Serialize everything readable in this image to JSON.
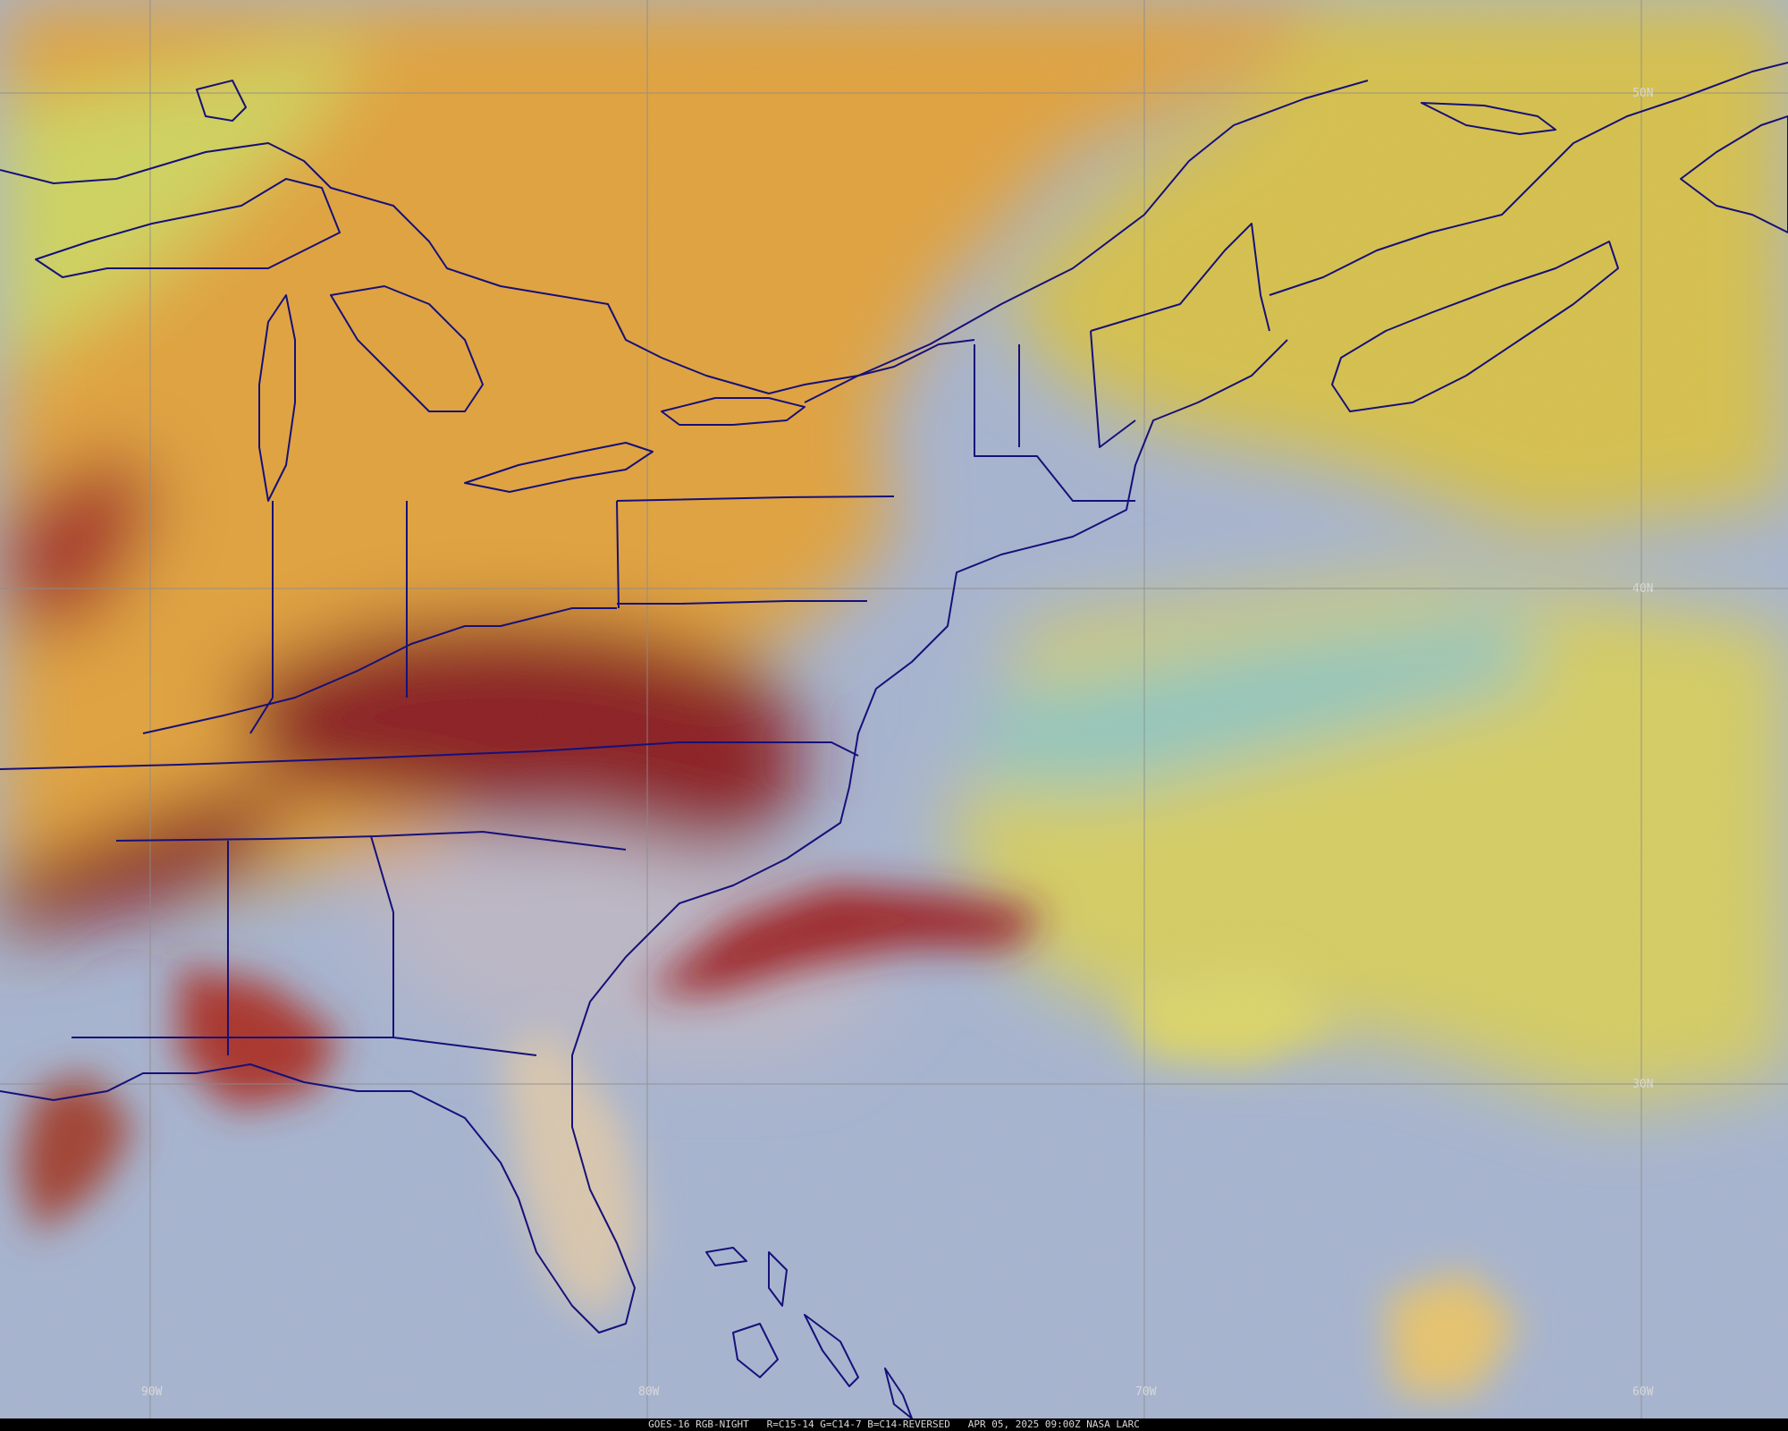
{
  "caption": "GOES-16 RGB-NIGHT   R=C15-14 G=C14-7 B=C14-REVERSED   APR 05, 2025 09:00Z NASA LARC",
  "colors": {
    "ocean": "#a6b4d2",
    "warm_land": "#e1a23e",
    "high_cloud": "#d8c84e",
    "storm": "#8a1a22",
    "clear_sky": "#8ec6c2",
    "border": "#16107a"
  },
  "graticule": {
    "longitude_labels": [
      "90W",
      "80W",
      "70W",
      "60W"
    ],
    "latitude_labels": [
      "50N",
      "40N",
      "30N"
    ]
  }
}
